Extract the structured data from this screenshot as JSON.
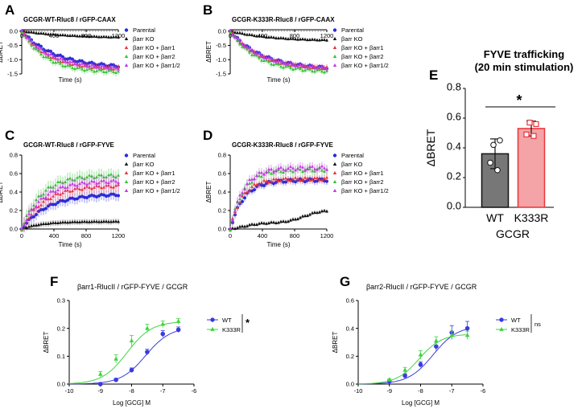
{
  "colors": {
    "parental": "#2b2bd9",
    "ko": "#111111",
    "b1": "#e8343a",
    "b2": "#35c535",
    "b12": "#c33ce0",
    "wt_dr": "#3a3ae0",
    "k333r_dr": "#3ed43e",
    "bar_wt": "#777777",
    "bar_k333r": "#f4a3a6",
    "bar_k333r_edge": "#e8343a"
  },
  "panel_labels": [
    "A",
    "B",
    "C",
    "D",
    "E",
    "F",
    "G"
  ],
  "legend_kinetic": [
    "Parental",
    "βarr KO",
    "βarr KO + βarr1",
    "βarr KO + βarr2",
    "βarr KO + βarr1/2"
  ],
  "legend_dr": [
    "WT",
    "K333R"
  ],
  "chart_data": [
    {
      "id": "A",
      "type": "scatter",
      "title": "GCGR-WT-Rluc8 / rGFP-CAAX",
      "xlabel": "Time (s)",
      "ylabel": "ΔBRET",
      "xlim": [
        0,
        1200
      ],
      "ylim": [
        -1.5,
        0.05
      ],
      "xticks": [
        "0",
        "400",
        "800",
        "1200"
      ],
      "yticks": [
        "0.0",
        "-0.5",
        "-1.0",
        "-1.5"
      ],
      "reference_line": 0,
      "series": [
        {
          "name": "Parental",
          "a": -1.3,
          "k": 420,
          "err": 0.08
        },
        {
          "name": "βarr KO",
          "a": -0.25,
          "k": 600,
          "err": 0.06
        },
        {
          "name": "βarr KO + βarr1",
          "a": -1.35,
          "k": 330,
          "err": 0.12
        },
        {
          "name": "βarr KO + βarr2",
          "a": -1.45,
          "k": 300,
          "err": 0.12
        },
        {
          "name": "βarr KO + βarr1/2",
          "a": -1.35,
          "k": 360,
          "err": 0.1
        }
      ]
    },
    {
      "id": "B",
      "type": "scatter",
      "title": "GCGR-K333R-Rluc8 / rGFP-CAAX",
      "xlabel": "Time (s)",
      "ylabel": "ΔBRET",
      "xlim": [
        0,
        1200
      ],
      "ylim": [
        -1.5,
        0.05
      ],
      "xticks": [
        "0",
        "400",
        "800",
        "1200"
      ],
      "yticks": [
        "0.0",
        "-0.5",
        "-1.0",
        "-1.5"
      ],
      "reference_line": 0,
      "series": [
        {
          "name": "Parental",
          "a": -1.35,
          "k": 400,
          "err": 0.08
        },
        {
          "name": "βarr KO",
          "a": -0.35,
          "k": 500,
          "err": 0.06
        },
        {
          "name": "βarr KO + βarr1",
          "a": -1.35,
          "k": 360,
          "err": 0.1
        },
        {
          "name": "βarr KO + βarr2",
          "a": -1.45,
          "k": 340,
          "err": 0.1
        },
        {
          "name": "βarr KO + βarr1/2",
          "a": -1.35,
          "k": 380,
          "err": 0.1
        }
      ]
    },
    {
      "id": "C",
      "type": "scatter",
      "title": "GCGR-WT-Rluc8 / rGFP-FYVE",
      "xlabel": "Time (s)",
      "ylabel": "ΔBRET",
      "xlim": [
        0,
        1200
      ],
      "ylim": [
        0,
        0.8
      ],
      "xticks": [
        "0",
        "400",
        "800",
        "1200"
      ],
      "yticks": [
        "0.0",
        "0.2",
        "0.4",
        "0.6",
        "0.8"
      ],
      "series": [
        {
          "name": "Parental",
          "a": 0.38,
          "k": 320,
          "err": 0.06
        },
        {
          "name": "βarr KO",
          "a": 0.08,
          "k": 250,
          "err": 0.03
        },
        {
          "name": "βarr KO + βarr1",
          "a": 0.47,
          "k": 280,
          "err": 0.07
        },
        {
          "name": "βarr KO + βarr2",
          "a": 0.58,
          "k": 240,
          "err": 0.07
        },
        {
          "name": "βarr KO + βarr1/2",
          "a": 0.52,
          "k": 260,
          "err": 0.07
        }
      ]
    },
    {
      "id": "D",
      "type": "scatter",
      "title": "GCGR-K333R-Rluc8 / rGFP-FYVE",
      "xlabel": "Time (s)",
      "ylabel": "ΔBRET",
      "xlim": [
        0,
        1200
      ],
      "ylim": [
        0,
        0.8
      ],
      "xticks": [
        "0",
        "400",
        "800",
        "1200"
      ],
      "yticks": [
        "0.0",
        "0.2",
        "0.4",
        "0.6",
        "0.8"
      ],
      "series": [
        {
          "name": "Parental",
          "a": 0.53,
          "k": 170,
          "err": 0.04
        },
        {
          "name": "βarr KO",
          "a": 0.2,
          "k": 900,
          "err": 0.02,
          "linear": true
        },
        {
          "name": "βarr KO + βarr1",
          "a": 0.54,
          "k": 150,
          "err": 0.04
        },
        {
          "name": "βarr KO + βarr2",
          "a": 0.64,
          "k": 160,
          "err": 0.05
        },
        {
          "name": "βarr KO + βarr1/2",
          "a": 0.66,
          "k": 160,
          "err": 0.05
        }
      ]
    },
    {
      "id": "E",
      "type": "bar",
      "title_line1": "FYVE trafficking",
      "title_line2": "(20 min stimulation)",
      "categories": [
        "WT",
        "K333R"
      ],
      "values": [
        0.36,
        0.53
      ],
      "errors": [
        0.1,
        0.05
      ],
      "points": [
        [
          0.3,
          0.45,
          0.42,
          0.25
        ],
        [
          0.49,
          0.56,
          0.57,
          0.48
        ]
      ],
      "xlabel": "GCGR",
      "ylabel": "ΔBRET",
      "ylim": [
        0,
        0.8
      ],
      "yticks": [
        "0.0",
        "0.2",
        "0.4",
        "0.6",
        "0.8"
      ],
      "significance": "*"
    },
    {
      "id": "F",
      "type": "line",
      "title": "βarr1-RlucII / rGFP-FYVE / GCGR",
      "xlabel": "Log [GCG] M",
      "ylabel": "ΔBRET",
      "xlim": [
        -10,
        -6
      ],
      "ylim": [
        0,
        0.3
      ],
      "xticks": [
        "-10",
        "-9",
        "-8",
        "-7",
        "-6"
      ],
      "yticks": [
        "0.0",
        "0.1",
        "0.2",
        "0.3"
      ],
      "x": [
        -9,
        -8.5,
        -8,
        -7.5,
        -7,
        -6.5
      ],
      "series": [
        {
          "name": "WT",
          "values": [
            0.0,
            0.015,
            0.05,
            0.115,
            0.18,
            0.195
          ],
          "errors": [
            0.005,
            0.006,
            0.008,
            0.01,
            0.012,
            0.01
          ],
          "fit": {
            "bottom": 0.0,
            "top": 0.205,
            "logec50": -7.55,
            "hill": 1.1
          }
        },
        {
          "name": "K333R",
          "values": [
            0.035,
            0.09,
            0.155,
            0.2,
            0.215,
            0.225
          ],
          "errors": [
            0.01,
            0.015,
            0.02,
            0.015,
            0.012,
            0.01
          ],
          "fit": {
            "bottom": 0.0,
            "top": 0.225,
            "logec50": -8.15,
            "hill": 1.1
          }
        }
      ],
      "significance": "*"
    },
    {
      "id": "G",
      "type": "line",
      "title": "βarr2-RlucII / rGFP-FYVE / GCGR",
      "xlabel": "Log [GCG] M",
      "ylabel": "ΔBRET",
      "xlim": [
        -10,
        -6
      ],
      "ylim": [
        0,
        0.6
      ],
      "xticks": [
        "-10",
        "-9",
        "-8",
        "-7",
        "-6"
      ],
      "yticks": [
        "0.0",
        "0.2",
        "0.4",
        "0.6"
      ],
      "x": [
        -9,
        -8.5,
        -8,
        -7.5,
        -7,
        -6.5
      ],
      "series": [
        {
          "name": "WT",
          "values": [
            0.02,
            0.06,
            0.14,
            0.27,
            0.37,
            0.4
          ],
          "errors": [
            0.01,
            0.015,
            0.02,
            0.03,
            0.05,
            0.05
          ],
          "fit": {
            "bottom": 0.0,
            "top": 0.42,
            "logec50": -7.6,
            "hill": 1.1
          }
        },
        {
          "name": "K333R",
          "values": [
            0.03,
            0.1,
            0.21,
            0.31,
            0.35,
            0.35
          ],
          "errors": [
            0.01,
            0.02,
            0.03,
            0.03,
            0.03,
            0.03
          ],
          "fit": {
            "bottom": 0.0,
            "top": 0.36,
            "logec50": -8.05,
            "hill": 1.2
          }
        }
      ],
      "significance": "ns"
    }
  ]
}
